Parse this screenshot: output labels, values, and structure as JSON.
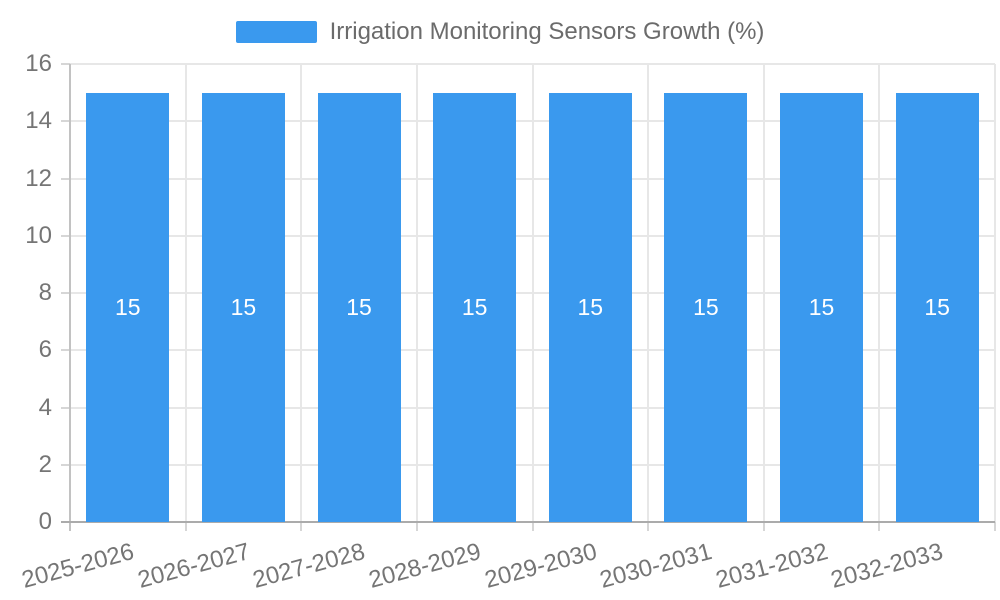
{
  "legend": {
    "label": "Irrigation Monitoring Sensors Growth (%)"
  },
  "chart_data": {
    "type": "bar",
    "title": "Irrigation Monitoring Sensors Growth (%)",
    "categories": [
      "2025-2026",
      "2026-2027",
      "2027-2028",
      "2028-2029",
      "2029-2030",
      "2030-2031",
      "2031-2032",
      "2032-2033"
    ],
    "series": [
      {
        "name": "Irrigation Monitoring Sensors Growth (%)",
        "values": [
          15,
          15,
          15,
          15,
          15,
          15,
          15,
          15
        ]
      }
    ],
    "value_labels": [
      "15",
      "15",
      "15",
      "15",
      "15",
      "15",
      "15",
      "15"
    ],
    "xlabel": "",
    "ylabel": "",
    "ylim": [
      0,
      16
    ],
    "yticks": [
      0,
      2,
      4,
      6,
      8,
      10,
      12,
      14,
      16
    ],
    "grid": true,
    "legend_position": "top",
    "x_label_rotation_deg": -15,
    "colors": {
      "bar": "#3a99ee",
      "value_label": "#ffffff",
      "grid_line": "#e7e7e7",
      "tick_mark": "#d6d6d6",
      "axis_line": "#ababab",
      "y_axis_line": "#c2c2c2",
      "tick_label": "#757575",
      "legend_text": "#6b6b6b",
      "background": "#ffffff"
    }
  }
}
